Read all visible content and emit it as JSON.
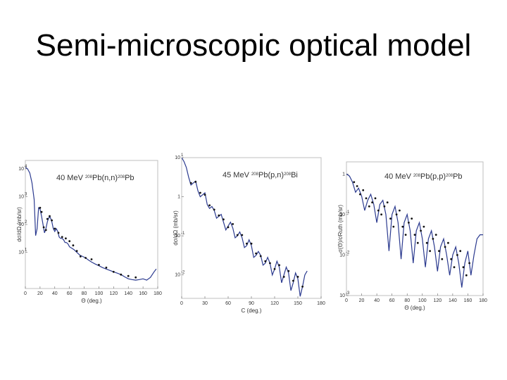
{
  "slide": {
    "title": "Semi-microscopic optical model"
  },
  "colors": {
    "curve": "#2b3a8f",
    "points": "#111111",
    "frame": "#bfbfbf"
  },
  "chart_data": [
    {
      "type": "scatter",
      "title_parts": {
        "energy": "40 MeV",
        "a1": "208",
        "reaction": "Pb(n,n)",
        "a2": "208",
        "product": "Pb"
      },
      "xlabel": "Θ (deg.)",
      "ylabel": "dσ/dΩ (mb/sr)",
      "xlim": [
        0,
        180
      ],
      "ylim_log10": [
        -0.3,
        4.3
      ],
      "log_y": true,
      "x_ticks": [
        "0",
        "20",
        "40",
        "60",
        "80",
        "100",
        "120",
        "140",
        "160",
        "180"
      ],
      "y_ticks": [
        {
          "label": "10",
          "exp": 4
        },
        {
          "label": "10",
          "exp": 3
        },
        {
          "label": "10",
          "exp": 2
        },
        {
          "label": "10",
          "exp": 1
        }
      ],
      "series": [
        {
          "kind": "line",
          "x": [
            0,
            3,
            6,
            9,
            12,
            14,
            16,
            18,
            20,
            22,
            24,
            26,
            28,
            30,
            32,
            34,
            36,
            38,
            40,
            42,
            44,
            46,
            48,
            50,
            52,
            54,
            56,
            58,
            60,
            63,
            66,
            70,
            74,
            78,
            82,
            86,
            90,
            95,
            100,
            105,
            110,
            115,
            120,
            125,
            130,
            135,
            140,
            145,
            150,
            155,
            160,
            165,
            170,
            175,
            178
          ],
          "y": [
            4.05,
            4.0,
            3.85,
            3.5,
            2.9,
            1.6,
            1.85,
            2.6,
            2.55,
            2.3,
            2.0,
            1.7,
            1.85,
            2.1,
            2.25,
            2.25,
            2.1,
            1.85,
            1.75,
            1.85,
            1.75,
            1.55,
            1.5,
            1.5,
            1.45,
            1.35,
            1.35,
            1.3,
            1.2,
            1.15,
            1.1,
            1.0,
            0.9,
            0.85,
            0.8,
            0.72,
            0.65,
            0.58,
            0.52,
            0.45,
            0.4,
            0.35,
            0.3,
            0.25,
            0.2,
            0.12,
            0.05,
            0.02,
            0.0,
            0.02,
            0.05,
            0.0,
            0.1,
            0.3,
            0.4
          ]
        },
        {
          "kind": "points",
          "x": [
            20,
            22,
            25,
            28,
            30,
            33,
            36,
            40,
            45,
            50,
            55,
            60,
            65,
            70,
            75,
            82,
            90,
            100,
            110,
            120,
            130,
            140,
            150
          ],
          "y": [
            2.6,
            2.45,
            1.9,
            1.8,
            2.2,
            2.3,
            2.15,
            1.85,
            1.7,
            1.55,
            1.5,
            1.4,
            1.25,
            1.05,
            0.85,
            0.8,
            0.75,
            0.55,
            0.45,
            0.3,
            0.2,
            0.15,
            0.1
          ]
        }
      ]
    },
    {
      "type": "scatter",
      "title_parts": {
        "energy": "45 MeV",
        "a1": "208",
        "reaction": "Pb(p,n)",
        "a2": "208",
        "product": "Bi"
      },
      "xlabel": "C (deg.)",
      "ylabel": "dσ/dΩ (mb/sr)",
      "xlim": [
        0,
        180
      ],
      "ylim_log10": [
        -2.6,
        1.0
      ],
      "log_y": true,
      "x_ticks": [
        "0",
        "30",
        "60",
        "90",
        "120",
        "150",
        "180"
      ],
      "y_ticks": [
        {
          "label": "10",
          "exp": 1
        },
        {
          "label": "1",
          "exp": 0
        },
        {
          "label": "10",
          "exp": -1
        },
        {
          "label": "10",
          "exp": -2
        }
      ],
      "series": [
        {
          "kind": "line",
          "x": [
            0,
            3,
            6,
            9,
            12,
            15,
            18,
            21,
            24,
            27,
            30,
            33,
            36,
            39,
            42,
            45,
            48,
            51,
            54,
            57,
            60,
            63,
            66,
            69,
            72,
            75,
            78,
            81,
            84,
            87,
            90,
            93,
            96,
            99,
            102,
            105,
            108,
            111,
            114,
            117,
            120,
            123,
            126,
            129,
            132,
            135,
            138,
            141,
            144,
            147,
            150,
            153,
            156,
            159,
            162
          ],
          "y": [
            1.0,
            0.9,
            0.75,
            0.5,
            0.3,
            0.35,
            0.4,
            0.15,
            0.0,
            0.05,
            0.1,
            -0.2,
            -0.3,
            -0.25,
            -0.35,
            -0.55,
            -0.5,
            -0.45,
            -0.65,
            -0.85,
            -0.75,
            -0.65,
            -0.8,
            -1.05,
            -1.0,
            -0.9,
            -1.05,
            -1.3,
            -1.25,
            -1.1,
            -1.25,
            -1.55,
            -1.5,
            -1.4,
            -1.5,
            -1.75,
            -1.7,
            -1.55,
            -1.7,
            -2.0,
            -1.85,
            -1.65,
            -1.8,
            -2.2,
            -2.0,
            -1.8,
            -1.95,
            -2.4,
            -2.2,
            -1.95,
            -2.1,
            -2.55,
            -2.3,
            -2.0,
            -1.9
          ]
        },
        {
          "kind": "points",
          "x": [
            12,
            18,
            24,
            30,
            36,
            42,
            48,
            54,
            60,
            66,
            72,
            78,
            84,
            90,
            96,
            102,
            108,
            114,
            120,
            126,
            132,
            138,
            144,
            150,
            156
          ],
          "y": [
            0.35,
            0.38,
            0.1,
            0.05,
            -0.22,
            -0.33,
            -0.48,
            -0.58,
            -0.78,
            -0.7,
            -0.98,
            -0.98,
            -1.2,
            -1.2,
            -1.45,
            -1.52,
            -1.65,
            -1.7,
            -1.85,
            -1.75,
            -2.05,
            -1.9,
            -2.15,
            -2.05,
            -2.3
          ]
        }
      ]
    },
    {
      "type": "scatter",
      "title_parts": {
        "energy": "40 MeV",
        "a1": "208",
        "reaction": "Pb(p,p)",
        "a2": "208",
        "product": "Pb"
      },
      "xlabel": "Θ (deg.)",
      "ylabel": "σ(Θ)/σRuth (mb/sr)",
      "xlim": [
        0,
        180
      ],
      "ylim_log10": [
        -3.0,
        0.3
      ],
      "log_y": true,
      "x_ticks": [
        "0",
        "20",
        "40",
        "60",
        "80",
        "100",
        "120",
        "140",
        "160",
        "180"
      ],
      "y_ticks": [
        {
          "label": "1",
          "exp": 0
        },
        {
          "label": "10",
          "exp": -1
        },
        {
          "label": "10",
          "exp": -2
        },
        {
          "label": "10",
          "exp": -3
        }
      ],
      "series": [
        {
          "kind": "line",
          "x": [
            0,
            4,
            8,
            12,
            16,
            20,
            24,
            28,
            32,
            36,
            40,
            44,
            48,
            52,
            56,
            60,
            64,
            68,
            72,
            76,
            80,
            84,
            88,
            92,
            96,
            100,
            104,
            108,
            112,
            116,
            120,
            124,
            128,
            132,
            136,
            140,
            144,
            148,
            152,
            156,
            160,
            164,
            168,
            172,
            176,
            180
          ],
          "y": [
            0.0,
            -0.05,
            -0.2,
            -0.45,
            -0.35,
            -0.55,
            -0.9,
            -0.65,
            -0.5,
            -0.75,
            -1.2,
            -0.75,
            -0.65,
            -1.0,
            -1.9,
            -1.0,
            -0.8,
            -1.2,
            -2.1,
            -1.2,
            -1.0,
            -1.4,
            -2.2,
            -1.4,
            -1.2,
            -1.6,
            -2.3,
            -1.6,
            -1.4,
            -1.8,
            -2.4,
            -1.8,
            -1.6,
            -2.0,
            -2.5,
            -2.0,
            -1.8,
            -2.2,
            -2.8,
            -2.2,
            -1.9,
            -2.5,
            -2.0,
            -1.6,
            -1.5,
            -1.5
          ]
        },
        {
          "kind": "points",
          "x": [
            10,
            14,
            18,
            22,
            26,
            30,
            34,
            38,
            42,
            46,
            50,
            54,
            58,
            62,
            66,
            70,
            74,
            78,
            82,
            86,
            90,
            94,
            98,
            102,
            106,
            110,
            114,
            118,
            122,
            126,
            130,
            134,
            138,
            142,
            146,
            150,
            154,
            158,
            162
          ],
          "y": [
            -0.2,
            -0.3,
            -0.5,
            -0.4,
            -0.6,
            -0.8,
            -0.7,
            -0.6,
            -0.9,
            -1.0,
            -0.8,
            -0.7,
            -1.1,
            -1.3,
            -1.0,
            -0.9,
            -1.3,
            -1.5,
            -1.2,
            -1.1,
            -1.5,
            -1.7,
            -1.4,
            -1.3,
            -1.7,
            -1.9,
            -1.6,
            -1.5,
            -1.9,
            -2.1,
            -1.8,
            -1.7,
            -2.1,
            -2.3,
            -2.0,
            -1.9,
            -2.3,
            -2.5,
            -2.2
          ]
        }
      ]
    }
  ]
}
